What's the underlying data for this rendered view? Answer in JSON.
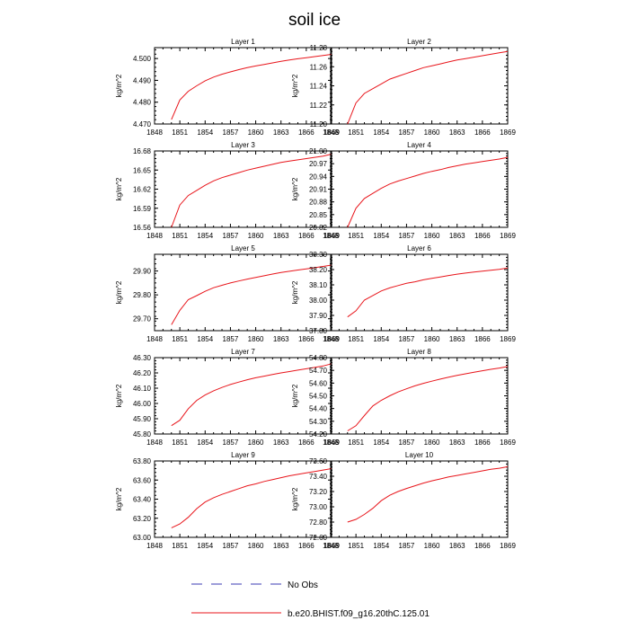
{
  "title": "soil ice",
  "legend": {
    "placement": "bottom",
    "entries": [
      {
        "label": "No Obs",
        "color": "#3b3bb3",
        "style": "dashed"
      },
      {
        "label": "b.e20.BHIST.f09_g16.20thC.125.01",
        "color": "#e8151b",
        "style": "solid"
      }
    ]
  },
  "chart_data": [
    {
      "type": "line",
      "title": "Layer 1",
      "ylabel": "kg/m^2",
      "xlim": [
        1848,
        1869
      ],
      "xticks": [
        "1848",
        "1851",
        "1854",
        "1857",
        "1860",
        "1863",
        "1866",
        "1869"
      ],
      "ylim": [
        4.47,
        4.505
      ],
      "yticks": [
        "4.470",
        "4.480",
        "4.490",
        "4.500"
      ],
      "series": [
        {
          "color": "#e8151b",
          "x": [
            1850,
            1851,
            1852,
            1853,
            1854,
            1855,
            1856,
            1857,
            1858,
            1859,
            1860,
            1861,
            1862,
            1863,
            1864,
            1865,
            1866,
            1867,
            1868,
            1869
          ],
          "y": [
            4.472,
            4.481,
            4.485,
            4.4875,
            4.4898,
            4.4915,
            4.4928,
            4.4939,
            4.4949,
            4.4958,
            4.4966,
            4.4973,
            4.498,
            4.4987,
            4.4993,
            4.4999,
            4.5004,
            4.5009,
            4.5014,
            4.5019
          ]
        }
      ]
    },
    {
      "type": "line",
      "title": "Layer 2",
      "ylabel": "kg/m^2",
      "xlim": [
        1848,
        1869
      ],
      "xticks": [
        "1848",
        "1851",
        "1854",
        "1857",
        "1860",
        "1863",
        "1866",
        "1869"
      ],
      "ylim": [
        11.2,
        11.28
      ],
      "yticks": [
        "11.20",
        "11.22",
        "11.24",
        "11.26",
        "11.28"
      ],
      "series": [
        {
          "color": "#e8151b",
          "x": [
            1850,
            1851,
            1852,
            1853,
            1854,
            1855,
            1856,
            1857,
            1858,
            1859,
            1860,
            1861,
            1862,
            1863,
            1864,
            1865,
            1866,
            1867,
            1868,
            1869
          ],
          "y": [
            11.2,
            11.222,
            11.232,
            11.237,
            11.242,
            11.247,
            11.25,
            11.253,
            11.256,
            11.259,
            11.261,
            11.263,
            11.265,
            11.267,
            11.2685,
            11.27,
            11.2715,
            11.273,
            11.2745,
            11.276
          ]
        }
      ]
    },
    {
      "type": "line",
      "title": "Layer 3",
      "ylabel": "kg/m^2",
      "xlim": [
        1848,
        1869
      ],
      "xticks": [
        "1848",
        "1851",
        "1854",
        "1857",
        "1860",
        "1863",
        "1866",
        "1869"
      ],
      "ylim": [
        16.56,
        16.68
      ],
      "yticks": [
        "16.56",
        "16.59",
        "16.62",
        "16.65",
        "16.68"
      ],
      "series": [
        {
          "color": "#e8151b",
          "x": [
            1850,
            1851,
            1852,
            1853,
            1854,
            1855,
            1856,
            1857,
            1858,
            1859,
            1860,
            1861,
            1862,
            1863,
            1864,
            1865,
            1866,
            1867,
            1868,
            1869
          ],
          "y": [
            16.56,
            16.595,
            16.61,
            16.618,
            16.626,
            16.633,
            16.638,
            16.642,
            16.646,
            16.65,
            16.653,
            16.656,
            16.659,
            16.662,
            16.664,
            16.666,
            16.668,
            16.67,
            16.672,
            16.675
          ]
        }
      ]
    },
    {
      "type": "line",
      "title": "Layer 4",
      "ylabel": "kg/m^2",
      "xlim": [
        1848,
        1869
      ],
      "xticks": [
        "1848",
        "1851",
        "1854",
        "1857",
        "1860",
        "1863",
        "1866",
        "1869"
      ],
      "ylim": [
        20.82,
        21.0
      ],
      "yticks": [
        "20.82",
        "20.85",
        "20.88",
        "20.91",
        "20.94",
        "20.97",
        "21.00"
      ],
      "series": [
        {
          "color": "#e8151b",
          "x": [
            1850,
            1851,
            1852,
            1853,
            1854,
            1855,
            1856,
            1857,
            1858,
            1859,
            1860,
            1861,
            1862,
            1863,
            1864,
            1865,
            1866,
            1867,
            1868,
            1869
          ],
          "y": [
            20.82,
            20.865,
            20.888,
            20.9,
            20.912,
            20.922,
            20.929,
            20.935,
            20.941,
            20.947,
            20.952,
            20.956,
            20.961,
            20.965,
            20.969,
            20.972,
            20.975,
            20.978,
            20.981,
            20.985
          ]
        }
      ]
    },
    {
      "type": "line",
      "title": "Layer 5",
      "ylabel": "kg/m^2",
      "xlim": [
        1848,
        1869
      ],
      "xticks": [
        "1848",
        "1851",
        "1854",
        "1857",
        "1860",
        "1863",
        "1866",
        "1869"
      ],
      "ylim": [
        29.65,
        29.97
      ],
      "yticks": [
        "29.70",
        "29.80",
        "29.90"
      ],
      "series": [
        {
          "color": "#e8151b",
          "x": [
            1850,
            1851,
            1852,
            1853,
            1854,
            1855,
            1856,
            1857,
            1858,
            1859,
            1860,
            1861,
            1862,
            1863,
            1864,
            1865,
            1866,
            1867,
            1868,
            1869
          ],
          "y": [
            29.675,
            29.735,
            29.78,
            29.797,
            29.815,
            29.83,
            29.84,
            29.85,
            29.858,
            29.866,
            29.873,
            29.88,
            29.887,
            29.894,
            29.899,
            29.904,
            29.909,
            29.914,
            29.919,
            29.925
          ]
        }
      ]
    },
    {
      "type": "line",
      "title": "Layer 6",
      "ylabel": "kg/m^2",
      "xlim": [
        1848,
        1869
      ],
      "xticks": [
        "1848",
        "1851",
        "1854",
        "1857",
        "1860",
        "1863",
        "1866",
        "1869"
      ],
      "ylim": [
        37.8,
        38.3
      ],
      "yticks": [
        "37.80",
        "37.90",
        "38.00",
        "38.10",
        "38.20",
        "38.30"
      ],
      "series": [
        {
          "color": "#e8151b",
          "x": [
            1850,
            1851,
            1852,
            1853,
            1854,
            1855,
            1856,
            1857,
            1858,
            1859,
            1860,
            1861,
            1862,
            1863,
            1864,
            1865,
            1866,
            1867,
            1868,
            1869
          ],
          "y": [
            37.89,
            37.93,
            38.0,
            38.03,
            38.06,
            38.08,
            38.095,
            38.11,
            38.12,
            38.133,
            38.143,
            38.152,
            38.161,
            38.17,
            38.177,
            38.184,
            38.19,
            38.196,
            38.202,
            38.21
          ]
        }
      ]
    },
    {
      "type": "line",
      "title": "Layer 7",
      "ylabel": "kg/m^2",
      "xlim": [
        1848,
        1869
      ],
      "xticks": [
        "1848",
        "1851",
        "1854",
        "1857",
        "1860",
        "1863",
        "1866",
        "1869"
      ],
      "ylim": [
        45.8,
        46.3
      ],
      "yticks": [
        "45.80",
        "45.90",
        "46.00",
        "46.10",
        "46.20",
        "46.30"
      ],
      "series": [
        {
          "color": "#e8151b",
          "x": [
            1850,
            1851,
            1852,
            1853,
            1854,
            1855,
            1856,
            1857,
            1858,
            1859,
            1860,
            1861,
            1862,
            1863,
            1864,
            1865,
            1866,
            1867,
            1868,
            1869
          ],
          "y": [
            45.855,
            45.89,
            45.965,
            46.02,
            46.055,
            46.083,
            46.105,
            46.124,
            46.14,
            46.155,
            46.168,
            46.179,
            46.19,
            46.2,
            46.209,
            46.218,
            46.227,
            46.236,
            46.245,
            46.26
          ]
        }
      ]
    },
    {
      "type": "line",
      "title": "Layer 8",
      "ylabel": "kg/m^2",
      "xlim": [
        1848,
        1869
      ],
      "xticks": [
        "1848",
        "1851",
        "1854",
        "1857",
        "1860",
        "1863",
        "1866",
        "1869"
      ],
      "ylim": [
        54.2,
        54.8
      ],
      "yticks": [
        "54.20",
        "54.30",
        "54.40",
        "54.50",
        "54.60",
        "54.70",
        "54.80"
      ],
      "series": [
        {
          "color": "#e8151b",
          "x": [
            1850,
            1851,
            1852,
            1853,
            1854,
            1855,
            1856,
            1857,
            1858,
            1859,
            1860,
            1861,
            1862,
            1863,
            1864,
            1865,
            1866,
            1867,
            1868,
            1869
          ],
          "y": [
            54.225,
            54.265,
            54.345,
            54.42,
            54.465,
            54.5,
            54.53,
            54.555,
            54.578,
            54.598,
            54.615,
            54.631,
            54.646,
            54.66,
            54.673,
            54.685,
            54.697,
            54.708,
            54.718,
            54.73
          ]
        }
      ]
    },
    {
      "type": "line",
      "title": "Layer 9",
      "ylabel": "kg/m^2",
      "xlim": [
        1848,
        1869
      ],
      "xticks": [
        "1848",
        "1851",
        "1854",
        "1857",
        "1860",
        "1863",
        "1866",
        "1869"
      ],
      "ylim": [
        63.0,
        63.8
      ],
      "yticks": [
        "63.00",
        "63.20",
        "63.40",
        "63.60",
        "63.80"
      ],
      "series": [
        {
          "color": "#e8151b",
          "x": [
            1850,
            1851,
            1852,
            1853,
            1854,
            1855,
            1856,
            1857,
            1858,
            1859,
            1860,
            1861,
            1862,
            1863,
            1864,
            1865,
            1866,
            1867,
            1868,
            1869
          ],
          "y": [
            63.1,
            63.14,
            63.21,
            63.3,
            63.37,
            63.415,
            63.45,
            63.48,
            63.51,
            63.54,
            63.56,
            63.585,
            63.605,
            63.625,
            63.645,
            63.66,
            63.675,
            63.69,
            63.705,
            63.72
          ]
        }
      ]
    },
    {
      "type": "line",
      "title": "Layer 10",
      "ylabel": "kg/m^2",
      "xlim": [
        1848,
        1869
      ],
      "xticks": [
        "1848",
        "1851",
        "1854",
        "1857",
        "1860",
        "1863",
        "1866",
        "1869"
      ],
      "ylim": [
        72.6,
        73.6
      ],
      "yticks": [
        "72.60",
        "72.80",
        "73.00",
        "73.20",
        "73.40",
        "73.60"
      ],
      "series": [
        {
          "color": "#e8151b",
          "x": [
            1850,
            1851,
            1852,
            1853,
            1854,
            1855,
            1856,
            1857,
            1858,
            1859,
            1860,
            1861,
            1862,
            1863,
            1864,
            1865,
            1866,
            1867,
            1868,
            1869
          ],
          "y": [
            72.8,
            72.835,
            72.9,
            72.98,
            73.08,
            73.15,
            73.2,
            73.24,
            73.275,
            73.31,
            73.34,
            73.365,
            73.39,
            73.41,
            73.43,
            73.45,
            73.47,
            73.49,
            73.505,
            73.525
          ]
        }
      ]
    }
  ]
}
